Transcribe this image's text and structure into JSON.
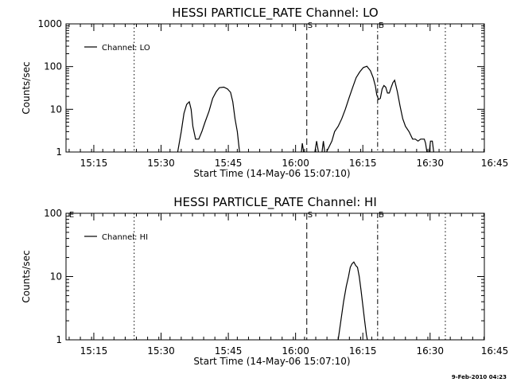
{
  "footer_date": "9-Feb-2010 04:23",
  "chart_data": [
    {
      "type": "line",
      "title": "HESSI PARTICLE_RATE Channel: LO",
      "xlabel": "Start Time (14-May-06 15:07:10)",
      "ylabel": "Counts/sec",
      "yscale": "log",
      "ylim": [
        1,
        1000
      ],
      "yticks": [
        "1",
        "10",
        "100",
        "1000"
      ],
      "xlim": [
        9.3,
        102.6
      ],
      "xtick_labels": [
        "15:15",
        "15:30",
        "15:45",
        "16:00",
        "16:15",
        "16:30",
        "16:45"
      ],
      "xtick_values": [
        15.5,
        30.5,
        45.5,
        60.5,
        75.5,
        90.5,
        105.5
      ],
      "legend": "Channel: LO",
      "legend_position": "top-left",
      "markers": [
        {
          "label": "",
          "x": 24.5,
          "style": "dotted"
        },
        {
          "label": "S",
          "x": 63.0,
          "style": "dashed"
        },
        {
          "label": "E",
          "x": 78.8,
          "style": "dashdot"
        },
        {
          "label": "",
          "x": 93.9,
          "style": "dotted"
        }
      ],
      "series": [
        {
          "name": "Channel: LO",
          "segments": [
            [
              [
                34.2,
                1
              ],
              [
                35.0,
                3
              ],
              [
                35.6,
                8
              ],
              [
                36.2,
                13
              ],
              [
                36.8,
                15
              ],
              [
                37.2,
                10
              ],
              [
                37.6,
                4
              ],
              [
                38.2,
                2
              ],
              [
                38.9,
                2
              ],
              [
                39.6,
                3
              ],
              [
                40.3,
                5
              ],
              [
                41.2,
                9
              ],
              [
                42.0,
                18
              ],
              [
                42.8,
                26
              ],
              [
                43.5,
                32
              ],
              [
                44.5,
                33
              ],
              [
                45.3,
                30
              ],
              [
                46.0,
                25
              ],
              [
                46.5,
                15
              ],
              [
                47.0,
                6
              ],
              [
                47.5,
                3
              ],
              [
                48.0,
                1
              ]
            ],
            [
              [
                61.8,
                1
              ],
              [
                62.0,
                1.6
              ],
              [
                62.3,
                1
              ]
            ],
            [
              [
                64.8,
                1
              ],
              [
                65.2,
                1.8
              ],
              [
                65.6,
                1
              ]
            ],
            [
              [
                66.4,
                1
              ],
              [
                66.7,
                1.8
              ],
              [
                67.0,
                1
              ]
            ],
            [
              [
                67.4,
                1
              ],
              [
                68.6,
                1.8
              ],
              [
                69.2,
                3
              ],
              [
                70.0,
                4
              ],
              [
                70.8,
                6
              ],
              [
                71.6,
                10
              ],
              [
                72.4,
                18
              ],
              [
                73.2,
                32
              ],
              [
                74.0,
                55
              ],
              [
                74.8,
                75
              ],
              [
                75.6,
                95
              ],
              [
                76.4,
                102
              ],
              [
                77.2,
                80
              ],
              [
                77.8,
                55
              ],
              [
                78.3,
                35
              ],
              [
                78.6,
                22
              ],
              [
                79.0,
                17
              ],
              [
                79.4,
                18
              ],
              [
                79.8,
                30
              ],
              [
                80.2,
                36
              ],
              [
                80.6,
                33
              ],
              [
                81.0,
                24
              ],
              [
                81.4,
                24
              ],
              [
                81.8,
                32
              ],
              [
                82.2,
                42
              ],
              [
                82.6,
                48
              ],
              [
                83.2,
                26
              ],
              [
                83.8,
                12
              ],
              [
                84.4,
                6
              ],
              [
                85.0,
                4
              ],
              [
                85.8,
                3
              ],
              [
                86.6,
                2
              ],
              [
                87.2,
                2
              ],
              [
                87.8,
                1.8
              ],
              [
                88.4,
                2
              ],
              [
                89.2,
                2
              ],
              [
                89.5,
                1.6
              ],
              [
                89.8,
                1
              ]
            ],
            [
              [
                90.3,
                1
              ],
              [
                90.6,
                1.8
              ],
              [
                91.0,
                1.8
              ],
              [
                91.3,
                1
              ]
            ]
          ]
        }
      ]
    },
    {
      "type": "line",
      "title": "HESSI PARTICLE_RATE Channel: HI",
      "xlabel": "Start Time (14-May-06 15:07:10)",
      "ylabel": "Counts/sec",
      "yscale": "log",
      "ylim": [
        1,
        100
      ],
      "yticks": [
        "1",
        "10",
        "100"
      ],
      "xlim": [
        9.3,
        102.6
      ],
      "xtick_labels": [
        "15:15",
        "15:30",
        "15:45",
        "16:00",
        "16:15",
        "16:30",
        "16:45"
      ],
      "xtick_values": [
        15.5,
        30.5,
        45.5,
        60.5,
        75.5,
        90.5,
        105.5
      ],
      "legend": "Channel: HI",
      "legend_position": "top-left",
      "markers": [
        {
          "label": "E",
          "x": 9.8,
          "style": "none"
        },
        {
          "label": "",
          "x": 24.5,
          "style": "dotted"
        },
        {
          "label": "S",
          "x": 63.0,
          "style": "dashed"
        },
        {
          "label": "E",
          "x": 78.8,
          "style": "dashdot"
        },
        {
          "label": "",
          "x": 93.9,
          "style": "dotted"
        }
      ],
      "series": [
        {
          "name": "Channel: HI",
          "segments": [
            [
              [
                70.0,
                1
              ],
              [
                70.6,
                2
              ],
              [
                71.2,
                4
              ],
              [
                71.8,
                7
              ],
              [
                72.3,
                10
              ],
              [
                72.7,
                14
              ],
              [
                73.1,
                16
              ],
              [
                73.5,
                17
              ],
              [
                73.9,
                15
              ],
              [
                74.3,
                14
              ],
              [
                74.7,
                10
              ],
              [
                75.1,
                6
              ],
              [
                75.5,
                3.5
              ],
              [
                75.9,
                2
              ],
              [
                76.3,
                1.2
              ],
              [
                76.5,
                1
              ]
            ]
          ]
        }
      ]
    }
  ]
}
